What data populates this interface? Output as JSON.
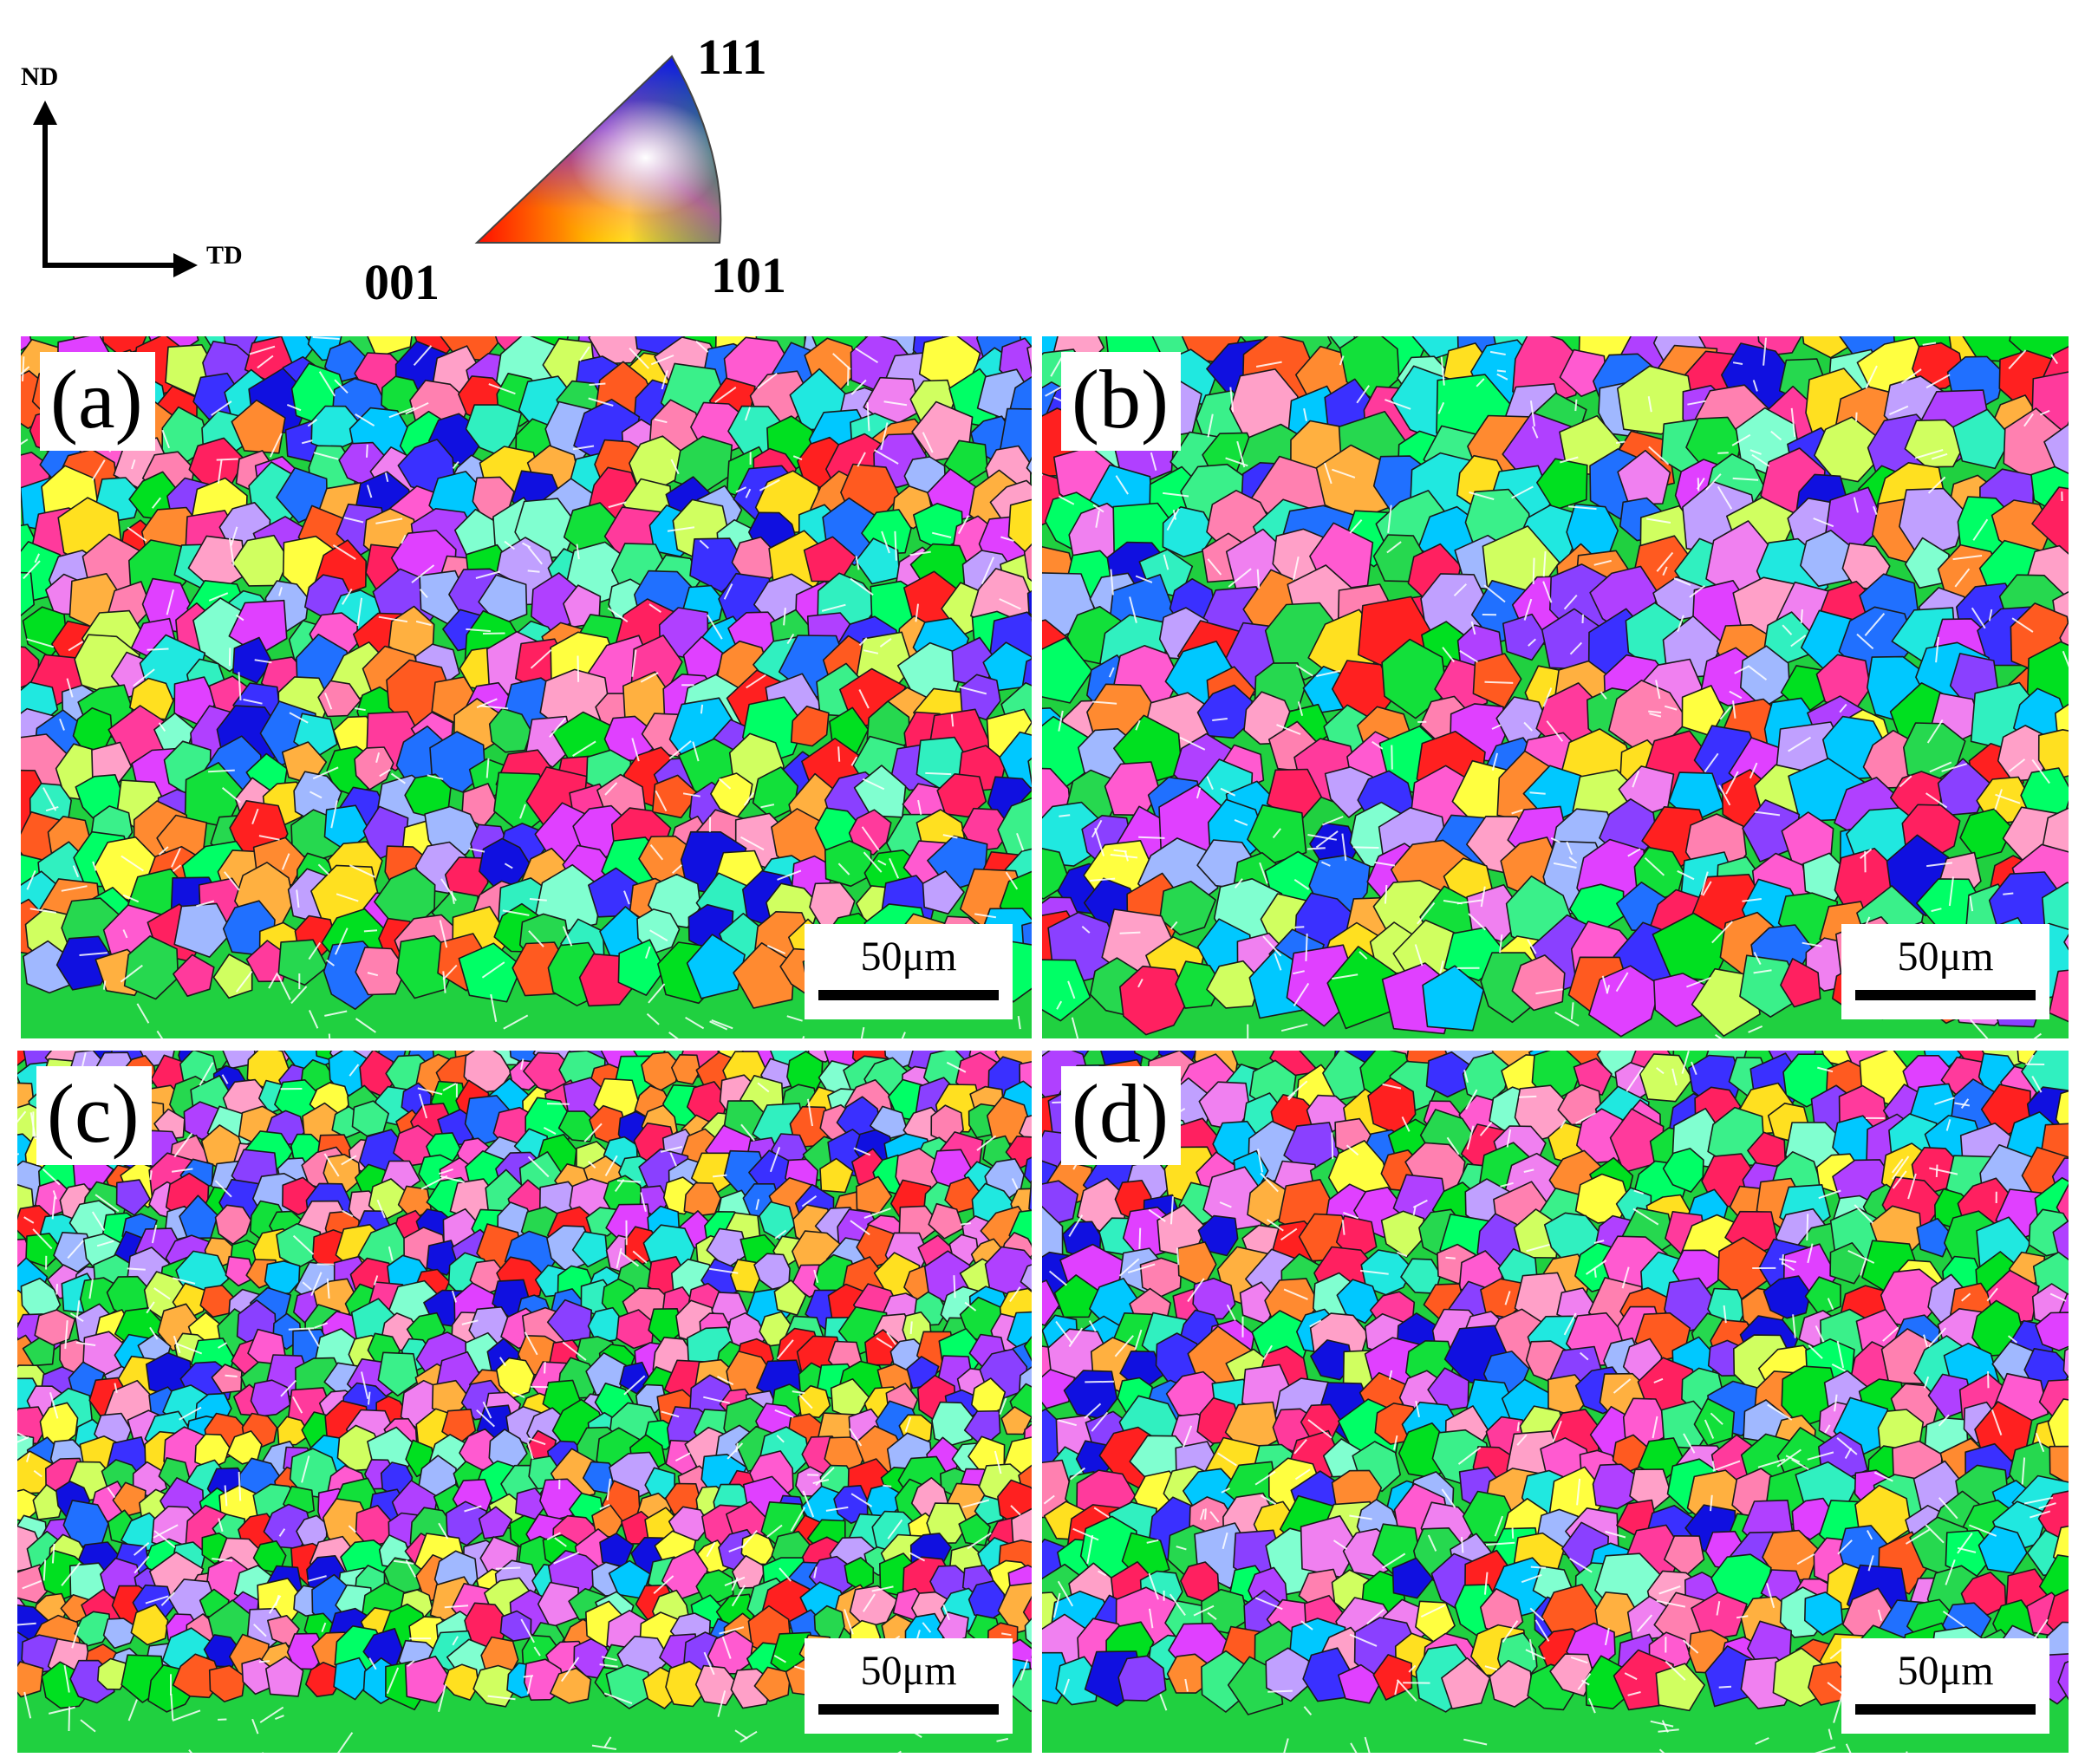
{
  "axes": {
    "vertical_label": "ND",
    "horizontal_label": "TD"
  },
  "ipf_key": {
    "corner_111": "111",
    "corner_001": "001",
    "corner_101": "101",
    "colors": {
      "001": "#ff0000",
      "101": "#00e000",
      "111": "#0000ff"
    }
  },
  "panels": [
    {
      "id": "a",
      "label": "(a)",
      "scale_bar": "50μm"
    },
    {
      "id": "b",
      "label": "(b)",
      "scale_bar": "50μm"
    },
    {
      "id": "c",
      "label": "(c)",
      "scale_bar": "50μm"
    },
    {
      "id": "d",
      "label": "(d)",
      "scale_bar": "50μm"
    }
  ]
}
